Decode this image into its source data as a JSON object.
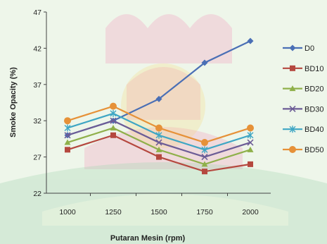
{
  "chart_data": {
    "type": "line",
    "title": "",
    "xlabel": "Putaran Mesin (rpm)",
    "ylabel": "Smoke Opacity (%)",
    "categories": [
      "1000",
      "1250",
      "1500",
      "1750",
      "2000"
    ],
    "ylim": [
      22,
      47
    ],
    "yticks": [
      "22",
      "27",
      "32",
      "37",
      "42",
      "47"
    ],
    "grid": false,
    "legend_position": "right",
    "series": [
      {
        "name": "D0",
        "values": [
          30,
          32,
          35,
          40,
          43
        ],
        "color": "#4a6fb5",
        "marker": "diamond"
      },
      {
        "name": "BD10",
        "values": [
          28,
          30,
          27,
          25,
          26
        ],
        "color": "#b5483f",
        "marker": "square"
      },
      {
        "name": "BD20",
        "values": [
          29,
          31,
          28,
          26,
          28
        ],
        "color": "#8fb04a",
        "marker": "triangle"
      },
      {
        "name": "BD30",
        "values": [
          30,
          32,
          29,
          27,
          29
        ],
        "color": "#6c5c96",
        "marker": "x"
      },
      {
        "name": "BD40",
        "values": [
          31,
          33,
          30,
          28,
          30
        ],
        "color": "#3ea6c4",
        "marker": "star"
      },
      {
        "name": "BD50",
        "values": [
          32,
          34,
          31,
          29,
          31
        ],
        "color": "#e69138",
        "marker": "circle"
      }
    ]
  }
}
